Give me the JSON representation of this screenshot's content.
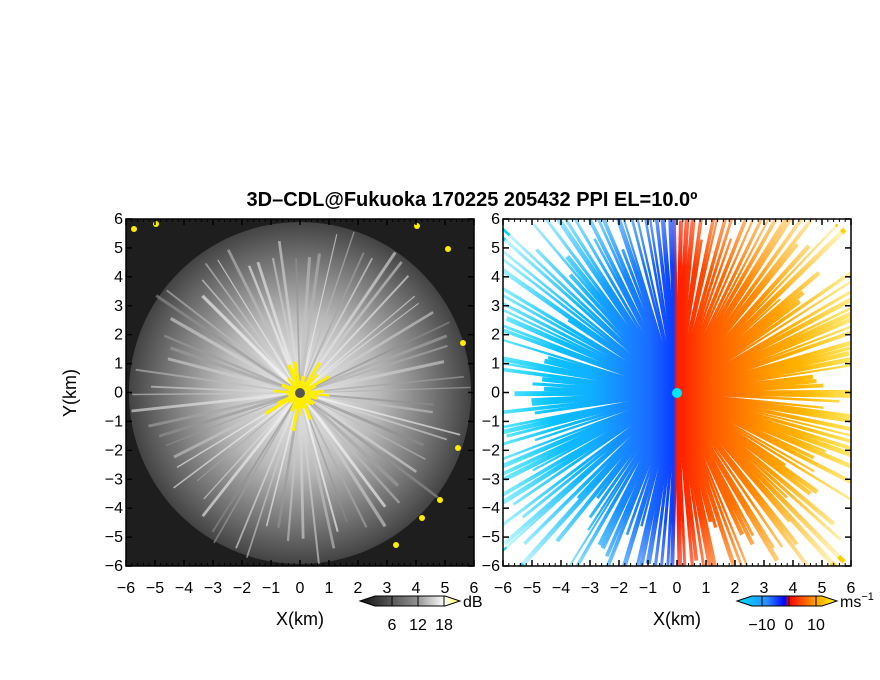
{
  "chart_data": {
    "title": "3D–CDL@Fukuoka 170225 205432 PPI EL=10.0º",
    "panels": [
      {
        "type": "heatmap",
        "variable": "snr",
        "xlabel": "X(km)",
        "ylabel": "Y(km)",
        "xlim": [
          -6,
          6
        ],
        "ylim": [
          -6,
          6
        ],
        "x_ticks": [
          "−6",
          "−5",
          "−4",
          "−3",
          "−2",
          "−1",
          "0",
          "1",
          "2",
          "3",
          "4",
          "5",
          "6"
        ],
        "y_ticks": [
          "6",
          "5",
          "4",
          "3",
          "2",
          "1",
          "0",
          "−1",
          "−2",
          "−3",
          "−4",
          "−5",
          "−6"
        ],
        "colorbar": {
          "colors": [
            "#000000",
            "#ffffff",
            "#ffff00"
          ],
          "tick_labels": [
            "6",
            "12",
            "18"
          ],
          "unit": "dB",
          "range": [
            0,
            24
          ]
        },
        "max_range_km": 5.9,
        "saturated_near_radar_km": 1.3
      },
      {
        "type": "heatmap",
        "variable": "doppler_velocity",
        "xlabel": "X(km)",
        "xlim": [
          -6,
          6
        ],
        "ylim": [
          -6,
          6
        ],
        "x_ticks": [
          "−6",
          "−5",
          "−4",
          "−3",
          "−2",
          "−1",
          "0",
          "1",
          "2",
          "3",
          "4",
          "5",
          "6"
        ],
        "y_ticks": [
          "6",
          "5",
          "4",
          "3",
          "2",
          "1",
          "0",
          "−1",
          "−2",
          "−3",
          "−4",
          "−5",
          "−6"
        ],
        "colorbar": {
          "colors": [
            "#00ffff",
            "#0064ff",
            "#0000ff",
            "#ff0000",
            "#ff8000",
            "#ffff00"
          ],
          "tick_labels": [
            "−10",
            "0",
            "10"
          ],
          "unit": "ms",
          "unit_superscript": "−1",
          "range": [
            -15,
            15
          ]
        },
        "flow_direction": "west-to-east"
      }
    ]
  }
}
